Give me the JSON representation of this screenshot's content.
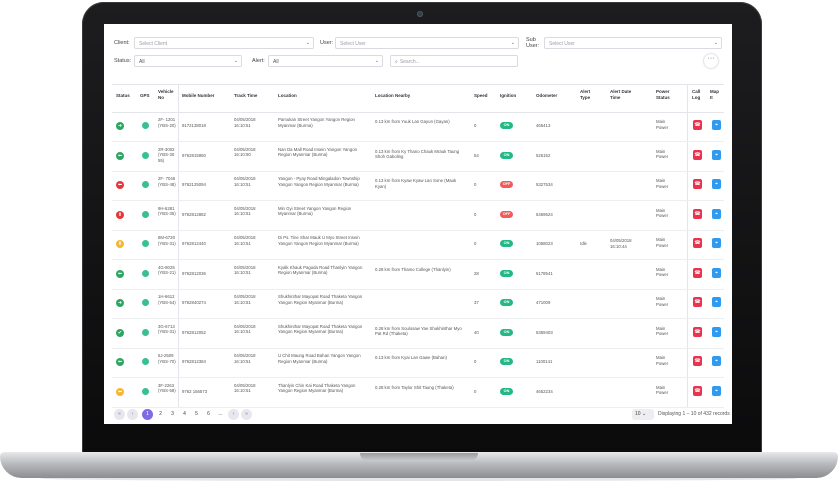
{
  "filters": {
    "client_label": "Client:",
    "client_placeholder": "Select Client",
    "user_label": "User:",
    "user_placeholder": "Select User",
    "subuser_label": "Sub User:",
    "subuser_placeholder": "Select User",
    "status_label": "Status:",
    "status_value": "All",
    "alert_label": "Alert:",
    "alert_value": "All",
    "search_placeholder": "Search..."
  },
  "more_glyph": "···",
  "columns": [
    "Status",
    "GPS",
    "Vehicle No",
    "Mobile Number",
    "Track Time",
    "Location",
    "Location Nearby",
    "Speed",
    "Ignition",
    "Odometer",
    "Alert Type",
    "Alert Date Time",
    "Power Status",
    "Call Log",
    "Map It"
  ],
  "rows": [
    {
      "status": "green-right",
      "vehicle": "2F- 1201 (YBS-20)",
      "mobile": "9172138018",
      "time": "04/05/2018 16:10:51",
      "location": "Pamukan Street Yangon Yangon Region Myanmar (Burma)",
      "nearby": "0.13 km from Yuuk Lan Gayun (Gayan)",
      "speed": "0",
      "ignition": "ON",
      "odometer": "465413",
      "alert_type": "",
      "alert_time": "",
      "power": "Main Power"
    },
    {
      "status": "green-left",
      "vehicle": "2R-3002 (YBS-30 55)",
      "mobile": "9762815950",
      "time": "04/05/2018 16:10:50",
      "location": "Nan Da Mall Road Insein Yangon Yangon Region Myanmar (Burma)",
      "nearby": "0.13 km from Ky Thano Chauk Mrauk Taung Shoh Gaboling",
      "speed": "54",
      "ignition": "ON",
      "odometer": "526152",
      "alert_type": "",
      "alert_time": "",
      "power": "Main Power"
    },
    {
      "status": "red-left",
      "vehicle": "2F- 7046 (YBS-48)",
      "mobile": "9762125094",
      "time": "04/05/2018 16:10:51",
      "location": "Yangon - Pyay Road Mingaladon Township Yangon Yangon Region Myanmar (Burma)",
      "nearby": "0.13 km from Kyaw Kyaw Lan Sone (Mauk Kyan)",
      "speed": "0",
      "ignition": "OFF",
      "odometer": "5327534",
      "alert_type": "",
      "alert_time": "",
      "power": "Main Power"
    },
    {
      "status": "red-up",
      "vehicle": "9H-6281 (YBS-35)",
      "mobile": "9762812882",
      "time": "04/05/2018 16:10:51",
      "location": "Min Gyi Street Yangon Yangon Region Myanmar (Burma)",
      "nearby": "",
      "speed": "0",
      "ignition": "OFF",
      "odometer": "5469524",
      "alert_type": "",
      "alert_time": "",
      "power": "Main Power"
    },
    {
      "status": "yellow-up",
      "vehicle": "8M-6730 (YBS-31)",
      "mobile": "9762812440",
      "time": "04/05/2018 16:10:51",
      "location": "Di Ps. Tine Shar Mauk U Myo Street Insein Yangon Yangon Region Myanmar (Burma)",
      "nearby": "",
      "speed": "0",
      "ignition": "ON",
      "odometer": "1058023",
      "alert_type": "Idle",
      "alert_time": "04/05/2018 16:10:44",
      "power": "Main Power"
    },
    {
      "status": "green-left",
      "vehicle": "4G-8025 (YBS-21)",
      "mobile": "9762812036",
      "time": "04/05/2018 16:10:51",
      "location": "Kyalk Khauk Pagoda Road Thanlyin Yangon Region Myanmar (Burma)",
      "nearby": "0.28 km from Thamo College (Thanlyin)",
      "speed": "28",
      "ignition": "ON",
      "odometer": "5178541",
      "alert_type": "",
      "alert_time": "",
      "power": "Main Power"
    },
    {
      "status": "green-right",
      "vehicle": "1H-6612 (YBS-54)",
      "mobile": "9762840274",
      "time": "04/05/2018 16:10:51",
      "location": "Shukhinthar Mayopat Road Thaketa Yangon Yangon Region Myanmar (Burma)",
      "nearby": "",
      "speed": "37",
      "ignition": "ON",
      "odometer": "471009",
      "alert_type": "",
      "alert_time": "",
      "power": "Main Power"
    },
    {
      "status": "green-check",
      "vehicle": "3G-6713 (YBS-31)",
      "mobile": "9762812052",
      "time": "04/05/2018 16:10:51",
      "location": "Shukhinthar Mayopat Road Thaketa Yangon Yangon Region Myanmar (Burma)",
      "nearby": "0.28 km from Soulosaw Yae Shukhinthar Myo Pat Rd (Thaketa)",
      "speed": "40",
      "ignition": "ON",
      "odometer": "5359403",
      "alert_type": "",
      "alert_time": "",
      "power": "Main Power"
    },
    {
      "status": "green-left",
      "vehicle": "5J-2509 (YBS-70)",
      "mobile": "9762812384",
      "time": "04/05/2018 16:10:51",
      "location": "U Chit Maung Road Bahan Yangon Yangon Region Myanmar (Burma)",
      "nearby": "0.13 km from Kyai Lan Gawe (Bahan)",
      "speed": "0",
      "ignition": "ON",
      "odometer": "1100141",
      "alert_type": "",
      "alert_time": "",
      "power": "Main Power"
    },
    {
      "status": "yellow-left",
      "vehicle": "3F-2263 (YBS-58)",
      "mobile": "9762 156573",
      "time": "04/05/2018 16:10:51",
      "location": "Thanlyin Chin Kai Road Thaketa Yangon Yangon Region Myanmar (Burma)",
      "nearby": "0.28 km from Taylor Shit Taung (Thaketa)",
      "speed": "0",
      "ignition": "ON",
      "odometer": "4652234",
      "alert_type": "",
      "alert_time": "",
      "power": "Main Power"
    }
  ],
  "status_colors": {
    "green": "#2ea562",
    "red": "#e5373b",
    "yellow": "#f5b731"
  },
  "status_glyphs": {
    "right": "➜",
    "left": "⬅",
    "up": "⬆",
    "check": "✔"
  },
  "pagination": {
    "pages": [
      "1",
      "2",
      "3",
      "4",
      "5",
      "6"
    ],
    "ellipsis": "...",
    "first": "«",
    "prev": "‹",
    "next": "›",
    "last": "»",
    "per_page": "10",
    "display_text": "Displaying 1 – 10 of 432 records"
  },
  "call_icon": "☎",
  "map_icon": "⌖"
}
